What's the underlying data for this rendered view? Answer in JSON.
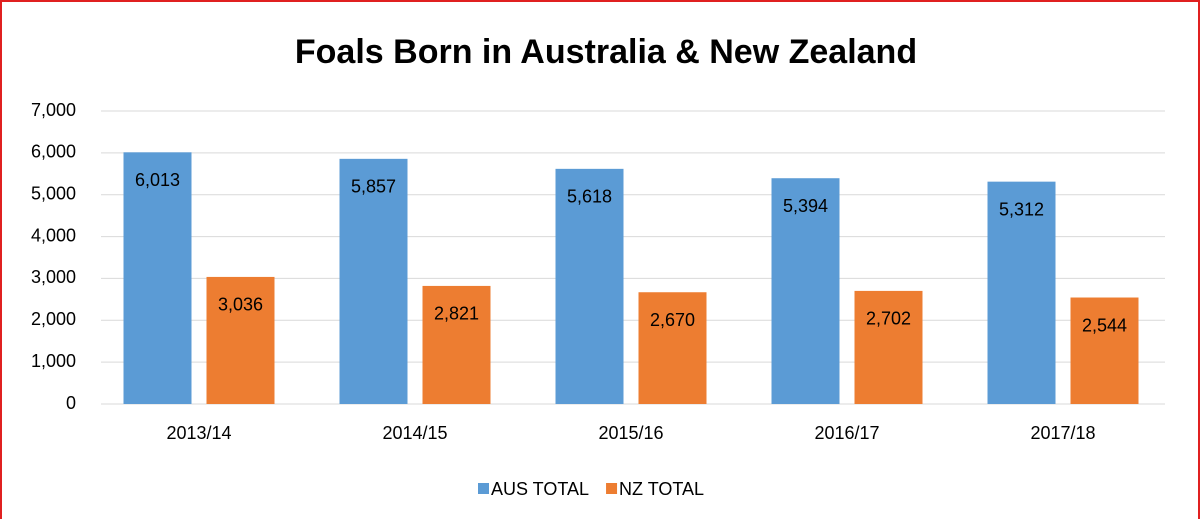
{
  "chart_data": {
    "type": "bar",
    "title": "Foals Born in Australia & New Zealand",
    "categories": [
      "2013/14",
      "2014/15",
      "2015/16",
      "2016/17",
      "2017/18"
    ],
    "series": [
      {
        "name": "AUS TOTAL",
        "color": "#5b9bd5",
        "values": [
          6013,
          5857,
          5618,
          5394,
          5312
        ],
        "value_labels": [
          "6,013",
          "5,857",
          "5,618",
          "5,394",
          "5,312"
        ]
      },
      {
        "name": "NZ TOTAL",
        "color": "#ed7d31",
        "values": [
          3036,
          2821,
          2670,
          2702,
          2544
        ],
        "value_labels": [
          "3,036",
          "2,821",
          "2,670",
          "2,702",
          "2,544"
        ]
      }
    ],
    "ylim": [
      0,
      7000
    ],
    "yticks": [
      0,
      {
        "value": 1000,
        "label": "1,000"
      },
      {
        "value": 2000,
        "label": "2,000"
      },
      {
        "value": 3000,
        "label": "3,000"
      },
      {
        "value": 4000,
        "label": "4,000"
      },
      {
        "value": 5000,
        "label": "5,000"
      },
      {
        "value": 6000,
        "label": "6,000"
      },
      {
        "value": 7000,
        "label": "7,000"
      }
    ],
    "grid": true,
    "legend": "bottom"
  }
}
